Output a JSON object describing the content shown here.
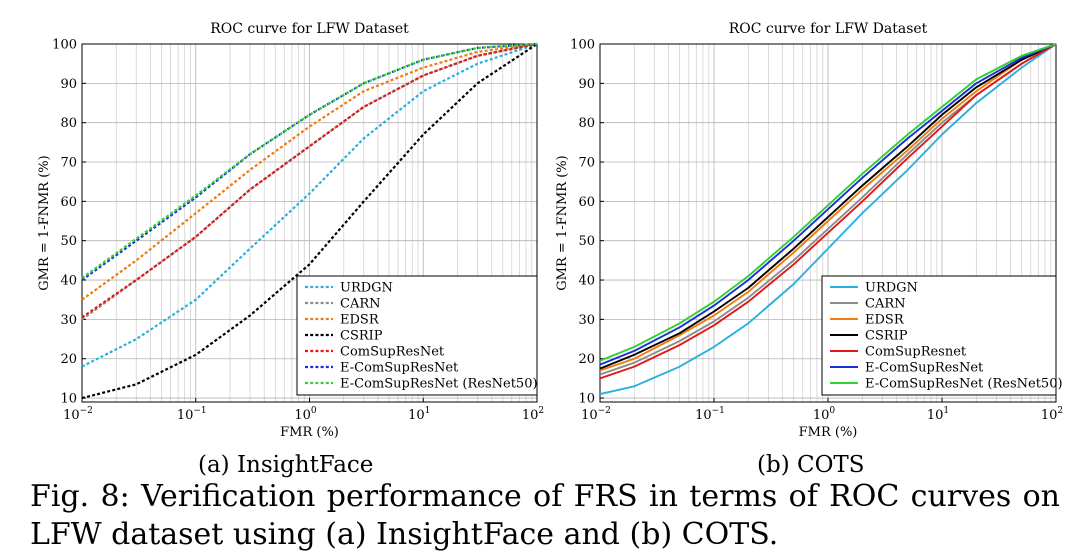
{
  "figure": {
    "subcaption_a": "(a) InsightFace",
    "subcaption_b": "(b) COTS",
    "caption": "Fig. 8: Verification performance of FRS in terms of ROC curves on LFW dataset using (a) InsightFace and (b) COTS."
  },
  "chart_data": [
    {
      "type": "line",
      "title": "ROC curve for LFW Dataset",
      "xlabel": "FMR (%)",
      "ylabel": "GMR = 1-FNMR (%)",
      "xscale": "log",
      "xlim": [
        0.01,
        100
      ],
      "ylim": [
        9,
        100
      ],
      "xticks": [
        0.01,
        0.1,
        1,
        10,
        100
      ],
      "xticklabels": [
        [
          "10",
          "−2"
        ],
        [
          "10",
          "−1"
        ],
        [
          "10",
          "0"
        ],
        [
          "10",
          "1"
        ],
        [
          "10",
          "2"
        ]
      ],
      "yticks": [
        10,
        20,
        30,
        40,
        50,
        60,
        70,
        80,
        90,
        100
      ],
      "grid": true,
      "legend_position": "bottom-right",
      "line_style": "dotted",
      "x": [
        0.01,
        0.03,
        0.1,
        0.3,
        1,
        3,
        10,
        30,
        100
      ],
      "series": [
        {
          "name": "URDGN",
          "color": "#2ab0e0",
          "values": [
            18,
            25,
            35,
            48,
            62,
            76,
            88,
            95,
            100
          ]
        },
        {
          "name": "CARN",
          "color": "#8c8c8c",
          "values": [
            30,
            40,
            51,
            63,
            74,
            84,
            92,
            97,
            100
          ]
        },
        {
          "name": "EDSR",
          "color": "#f07c10",
          "values": [
            35,
            45,
            57,
            68,
            79,
            88,
            94,
            98,
            100
          ]
        },
        {
          "name": "CSRIP",
          "color": "#000000",
          "values": [
            10,
            13.5,
            21,
            31,
            44,
            60,
            77,
            90,
            100
          ]
        },
        {
          "name": "ComSupResNet",
          "color": "#e01818",
          "values": [
            30.5,
            40,
            51,
            63,
            74,
            84,
            92,
            97,
            100
          ]
        },
        {
          "name": "E-ComSupResNet",
          "color": "#1830d8",
          "values": [
            40,
            50,
            61,
            72,
            82,
            90,
            96,
            99,
            100
          ]
        },
        {
          "name": "E-ComSupResNet (ResNet50)",
          "color": "#30d030",
          "values": [
            40.5,
            50.5,
            61.5,
            72,
            82,
            90,
            96,
            99,
            100
          ]
        }
      ]
    },
    {
      "type": "line",
      "title": "ROC curve for LFW Dataset",
      "xlabel": "FMR (%)",
      "ylabel": "GMR = 1-FNMR (%)",
      "xscale": "log",
      "xlim": [
        0.01,
        100
      ],
      "ylim": [
        9,
        100
      ],
      "xticks": [
        0.01,
        0.1,
        1,
        10,
        100
      ],
      "xticklabels": [
        [
          "10",
          "−2"
        ],
        [
          "10",
          "−1"
        ],
        [
          "10",
          "0"
        ],
        [
          "10",
          "1"
        ],
        [
          "10",
          "2"
        ]
      ],
      "yticks": [
        10,
        20,
        30,
        40,
        50,
        60,
        70,
        80,
        90,
        100
      ],
      "grid": true,
      "legend_position": "bottom-right",
      "line_style": "solid",
      "x": [
        0.01,
        0.02,
        0.05,
        0.1,
        0.2,
        0.5,
        1,
        2,
        5,
        10,
        20,
        50,
        100
      ],
      "series": [
        {
          "name": "URDGN",
          "color": "#2ab0e0",
          "values": [
            11,
            13,
            18,
            23,
            29,
            39,
            48,
            57,
            68,
            77,
            85,
            94,
            100
          ]
        },
        {
          "name": "CARN",
          "color": "#8c8c8c",
          "values": [
            16,
            19,
            24.5,
            29.5,
            35.5,
            45,
            53,
            61,
            72,
            80,
            87,
            95,
            100
          ]
        },
        {
          "name": "EDSR",
          "color": "#f07c10",
          "values": [
            17,
            20,
            26,
            31,
            37,
            47,
            55,
            63,
            73,
            81,
            88,
            96,
            100
          ]
        },
        {
          "name": "CSRIP",
          "color": "#000000",
          "values": [
            17.5,
            21,
            26.5,
            32,
            38,
            48,
            56,
            64,
            74,
            82,
            89,
            96,
            100
          ]
        },
        {
          "name": "ComSupResnet",
          "color": "#e01818",
          "values": [
            15,
            18,
            23.5,
            28.5,
            34.5,
            44,
            52,
            60,
            71,
            79,
            87,
            95,
            100
          ]
        },
        {
          "name": "E-ComSupResNet",
          "color": "#1830d8",
          "values": [
            18.5,
            22,
            28,
            33.5,
            40,
            50,
            58,
            66,
            76,
            83,
            90,
            96.5,
            100
          ]
        },
        {
          "name": "E-ComSupResNet (ResNet50)",
          "color": "#30d030",
          "values": [
            19.5,
            23,
            29,
            34.5,
            41,
            51,
            59,
            67,
            77,
            84,
            91,
            97,
            100
          ]
        }
      ]
    }
  ]
}
